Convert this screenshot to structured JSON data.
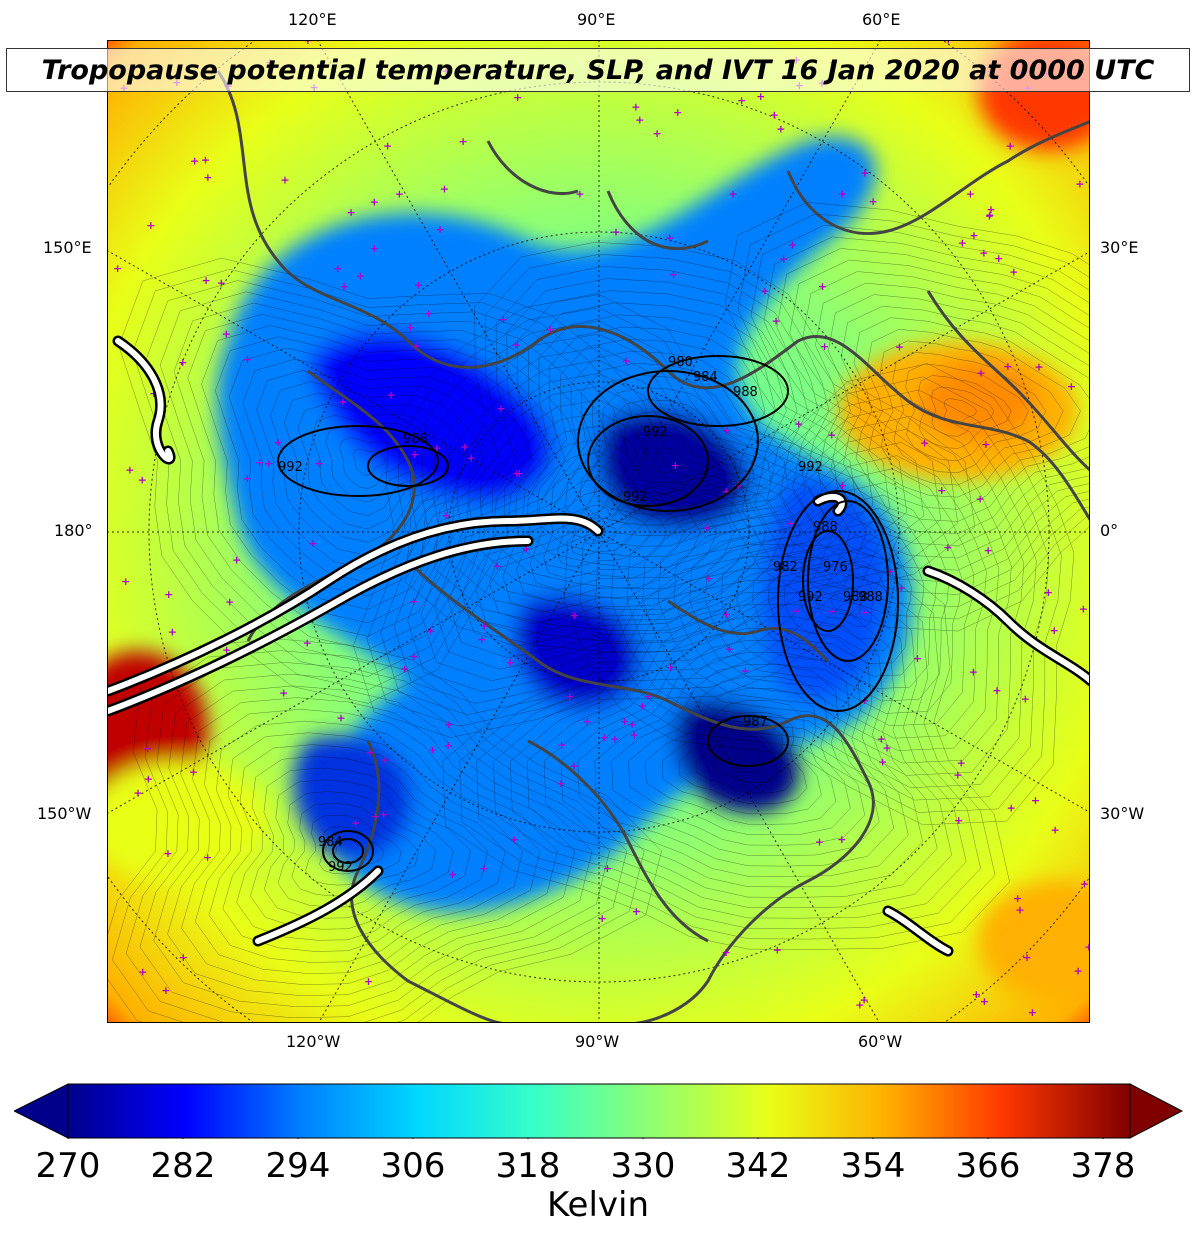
{
  "title": "Tropopause potential temperature, SLP, and IVT 16 Jan 2020 at 0000 UTC",
  "lon_labels_top": [
    "120°E",
    "90°E",
    "60°E"
  ],
  "lon_labels_bottom": [
    "120°W",
    "90°W",
    "60°W"
  ],
  "lon_labels_left": [
    "150°E",
    "180°",
    "150°W"
  ],
  "lon_labels_right": [
    "30°E",
    "0°",
    "30°W"
  ],
  "slp_contour_labels": [
    "992",
    "988",
    "992",
    "980",
    "984",
    "988",
    "992",
    "992",
    "988",
    "976",
    "982",
    "992",
    "988",
    "984",
    "992",
    "987",
    "988"
  ],
  "colorbar": {
    "label": "Kelvin",
    "ticks": [
      "270",
      "282",
      "294",
      "306",
      "318",
      "330",
      "342",
      "354",
      "366",
      "378"
    ],
    "min": 270,
    "max": 381,
    "extend": "both",
    "colormap": [
      "#00008b",
      "#0000ff",
      "#0080ff",
      "#00d8ff",
      "#38ffc8",
      "#90ff70",
      "#e8ff18",
      "#ffb000",
      "#ff3800",
      "#800000"
    ]
  },
  "colors": {
    "slp_contour": "#000000",
    "ivt_outline": "#000000",
    "ivt_fill": "#ffffff",
    "coastline": "#444444",
    "tropopause_marker": "#b000c8"
  }
}
